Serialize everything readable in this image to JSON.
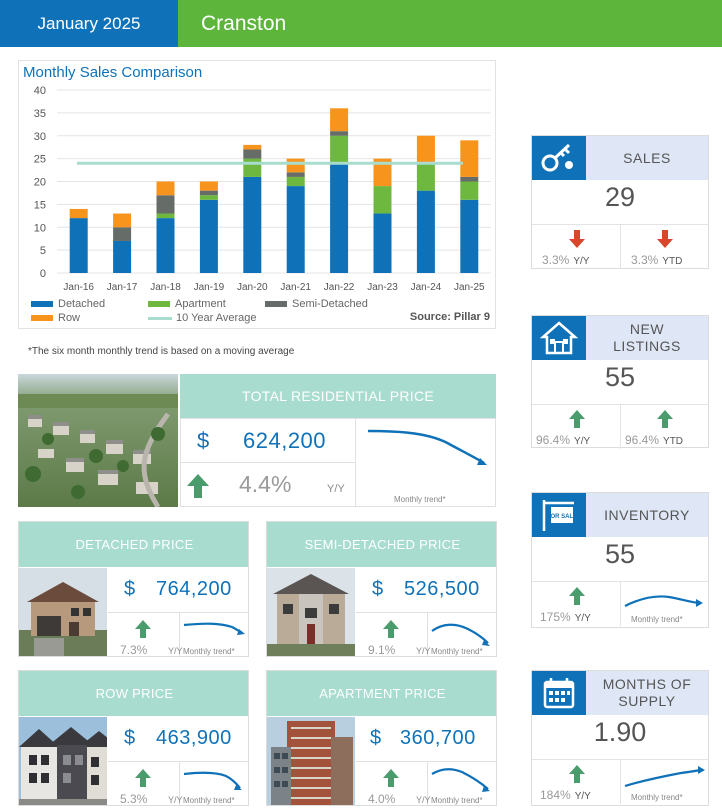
{
  "header": {
    "date": "January 2025",
    "area": "Cranston"
  },
  "chart_data": {
    "type": "bar",
    "stacked": true,
    "title": "Monthly Sales Comparison",
    "categories": [
      "Jan-16",
      "Jan-17",
      "Jan-18",
      "Jan-19",
      "Jan-20",
      "Jan-21",
      "Jan-22",
      "Jan-23",
      "Jan-24",
      "Jan-25"
    ],
    "series": [
      {
        "name": "Detached",
        "color": "#0f72b8",
        "values": [
          12,
          7,
          12,
          16,
          21,
          19,
          24,
          13,
          18,
          16
        ]
      },
      {
        "name": "Apartment",
        "color": "#6fb83f",
        "values": [
          0,
          0,
          1,
          1,
          4,
          2,
          6,
          6,
          6,
          4
        ]
      },
      {
        "name": "Semi-Detached",
        "color": "#666d69",
        "values": [
          0,
          3,
          4,
          1,
          2,
          1,
          1,
          0,
          0,
          1
        ]
      },
      {
        "name": "Row",
        "color": "#f7941d",
        "values": [
          2,
          3,
          3,
          2,
          1,
          3,
          5,
          6,
          6,
          8
        ]
      }
    ],
    "average_line": {
      "name": "10 Year Average",
      "color": "#a8dccf",
      "value": 24
    },
    "ylim": [
      0,
      40
    ],
    "yticks": [
      0,
      5,
      10,
      15,
      20,
      25,
      30,
      35,
      40
    ],
    "grid": true,
    "legend_position": "bottom",
    "source": "Source: Pillar 9"
  },
  "footnote": "*The six month monthly trend is based on a moving average",
  "total": {
    "title": "TOTAL RESIDENTIAL PRICE",
    "currency": "$",
    "value": "624,200",
    "change": "4.4%",
    "yy": "Y/Y",
    "trend_label": "Monthly trend*"
  },
  "detached": {
    "title": "DETACHED PRICE",
    "currency": "$",
    "value": "764,200",
    "change": "7.3%",
    "yy": "Y/Y",
    "trend_label": "Monthly trend*"
  },
  "semi": {
    "title": "SEMI-DETACHED PRICE",
    "currency": "$",
    "value": "526,500",
    "change": "9.1%",
    "yy": "Y/Y",
    "trend_label": "Monthly trend*"
  },
  "row": {
    "title": "ROW PRICE",
    "currency": "$",
    "value": "463,900",
    "change": "5.3%",
    "yy": "Y/Y",
    "trend_label": "Monthly trend*"
  },
  "apartment": {
    "title": "APARTMENT PRICE",
    "currency": "$",
    "value": "360,700",
    "change": "4.0%",
    "yy": "Y/Y",
    "trend_label": "Monthly trend*"
  },
  "stats": {
    "sales": {
      "label": "SALES",
      "value": "29",
      "yy_pct": "3.3%",
      "yy": "Y/Y",
      "ytd_pct": "3.3%",
      "ytd": "YTD",
      "icon": "key-icon"
    },
    "listings": {
      "label1": "NEW",
      "label2": "LISTINGS",
      "value": "55",
      "yy_pct": "96.4%",
      "yy": "Y/Y",
      "ytd_pct": "96.4%",
      "ytd": "YTD",
      "icon": "house-icon"
    },
    "inventory": {
      "label": "INVENTORY",
      "value": "55",
      "yy_pct": "175%",
      "yy": "Y/Y",
      "trend_label": "Monthly trend*",
      "icon": "for-sale-sign-icon",
      "sign_text": "FOR SALE"
    },
    "supply": {
      "label1": "MONTHS OF",
      "label2": "SUPPLY",
      "value": "1.90",
      "yy_pct": "184%",
      "yy": "Y/Y",
      "trend_label": "Monthly trend*",
      "icon": "calendar-icon"
    }
  },
  "colors": {
    "blue": "#0f72b8",
    "green": "#5db53c",
    "teal": "#a8dccf",
    "arrow_up": "#4a9c6d",
    "arrow_down": "#d9472b"
  }
}
